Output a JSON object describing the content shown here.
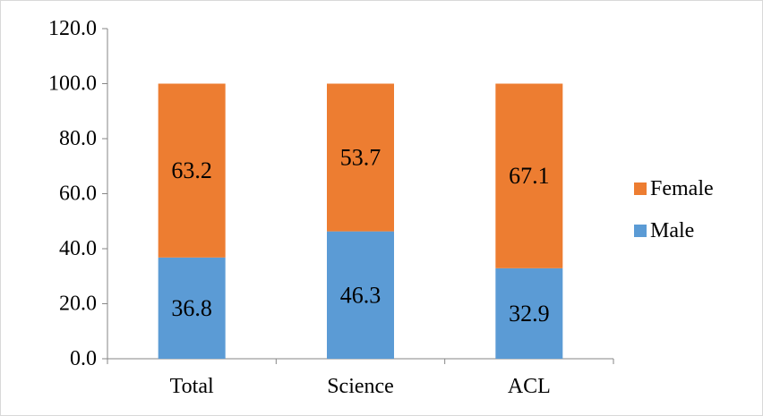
{
  "chart_data": {
    "type": "bar",
    "stacked": true,
    "categories": [
      "Total",
      "Science",
      "ACL"
    ],
    "series": [
      {
        "name": "Male",
        "values": [
          36.8,
          46.3,
          32.9
        ],
        "color": "#5B9BD5"
      },
      {
        "name": "Female",
        "values": [
          63.2,
          53.7,
          67.1
        ],
        "color": "#ED7D31"
      }
    ],
    "ylim": [
      0,
      120
    ],
    "yticks": [
      0,
      20,
      40,
      60,
      80,
      100,
      120
    ],
    "ytick_labels": [
      "0.0",
      "20.0",
      "40.0",
      "60.0",
      "80.0",
      "100.0",
      "120.0"
    ],
    "title": "",
    "xlabel": "",
    "ylabel": "",
    "grid": false,
    "legend": {
      "placement": "right",
      "entries": [
        "Female",
        "Male"
      ]
    },
    "data_labels": true
  }
}
